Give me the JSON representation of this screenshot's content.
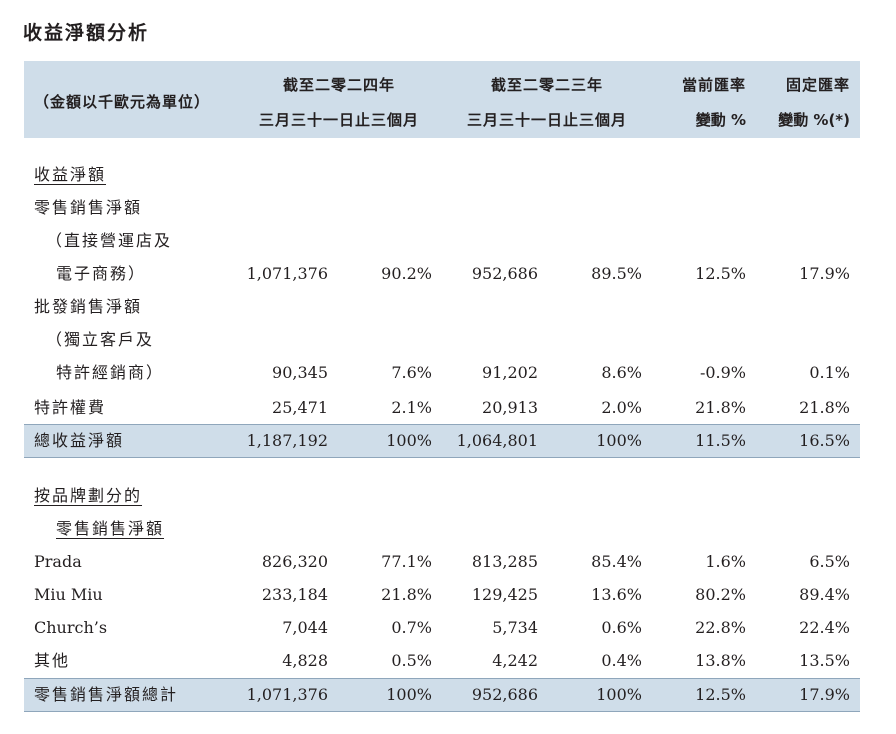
{
  "title": "收益淨額分析",
  "header": {
    "unit": "（金額以千歐元為單位）",
    "col_2024_line1": "截至二零二四年",
    "col_2024_line2": "三月三十一日止三個月",
    "col_2023_line1": "截至二零二三年",
    "col_2023_line2": "三月三十一日止三個月",
    "col_current_line1": "當前匯率",
    "col_current_line2": "變動 %",
    "col_constant_line1": "固定匯率",
    "col_constant_line2": "變動 %(*)"
  },
  "section1": {
    "heading": "收益淨額",
    "retail_label_1": "零售銷售淨額",
    "retail_label_2": "（直接營運店及",
    "retail_label_3": "電子商務）",
    "retail": {
      "v2024": "1,071,376",
      "p2024": "90.2%",
      "v2023": "952,686",
      "p2023": "89.5%",
      "cur": "12.5%",
      "con": "17.9%"
    },
    "wholesale_label_1": "批發銷售淨額",
    "wholesale_label_2": "（獨立客戶及",
    "wholesale_label_3": "特許經銷商）",
    "wholesale": {
      "v2024": "90,345",
      "p2024": "7.6%",
      "v2023": "91,202",
      "p2023": "8.6%",
      "cur": "-0.9%",
      "con": "0.1%"
    },
    "royalty_label": "特許權費",
    "royalty": {
      "v2024": "25,471",
      "p2024": "2.1%",
      "v2023": "20,913",
      "p2023": "2.0%",
      "cur": "21.8%",
      "con": "21.8%"
    },
    "total_label": "總收益淨額",
    "total": {
      "v2024": "1,187,192",
      "p2024": "100%",
      "v2023": "1,064,801",
      "p2023": "100%",
      "cur": "11.5%",
      "con": "16.5%"
    }
  },
  "section2": {
    "heading_1": "按品牌劃分的",
    "heading_2": "零售銷售淨額",
    "prada_label": "Prada",
    "prada": {
      "v2024": "826,320",
      "p2024": "77.1%",
      "v2023": "813,285",
      "p2023": "85.4%",
      "cur": "1.6%",
      "con": "6.5%"
    },
    "miumiu_label": "Miu Miu",
    "miumiu": {
      "v2024": "233,184",
      "p2024": "21.8%",
      "v2023": "129,425",
      "p2023": "13.6%",
      "cur": "80.2%",
      "con": "89.4%"
    },
    "churchs_label": "Church’s",
    "churchs": {
      "v2024": "7,044",
      "p2024": "0.7%",
      "v2023": "5,734",
      "p2023": "0.6%",
      "cur": "22.8%",
      "con": "22.4%"
    },
    "other_label": "其他",
    "other": {
      "v2024": "4,828",
      "p2024": "0.5%",
      "v2023": "4,242",
      "p2023": "0.4%",
      "cur": "13.8%",
      "con": "13.5%"
    },
    "total_label": "零售銷售淨額總計",
    "total": {
      "v2024": "1,071,376",
      "p2024": "100%",
      "v2023": "952,686",
      "p2023": "100%",
      "cur": "12.5%",
      "con": "17.9%"
    }
  }
}
